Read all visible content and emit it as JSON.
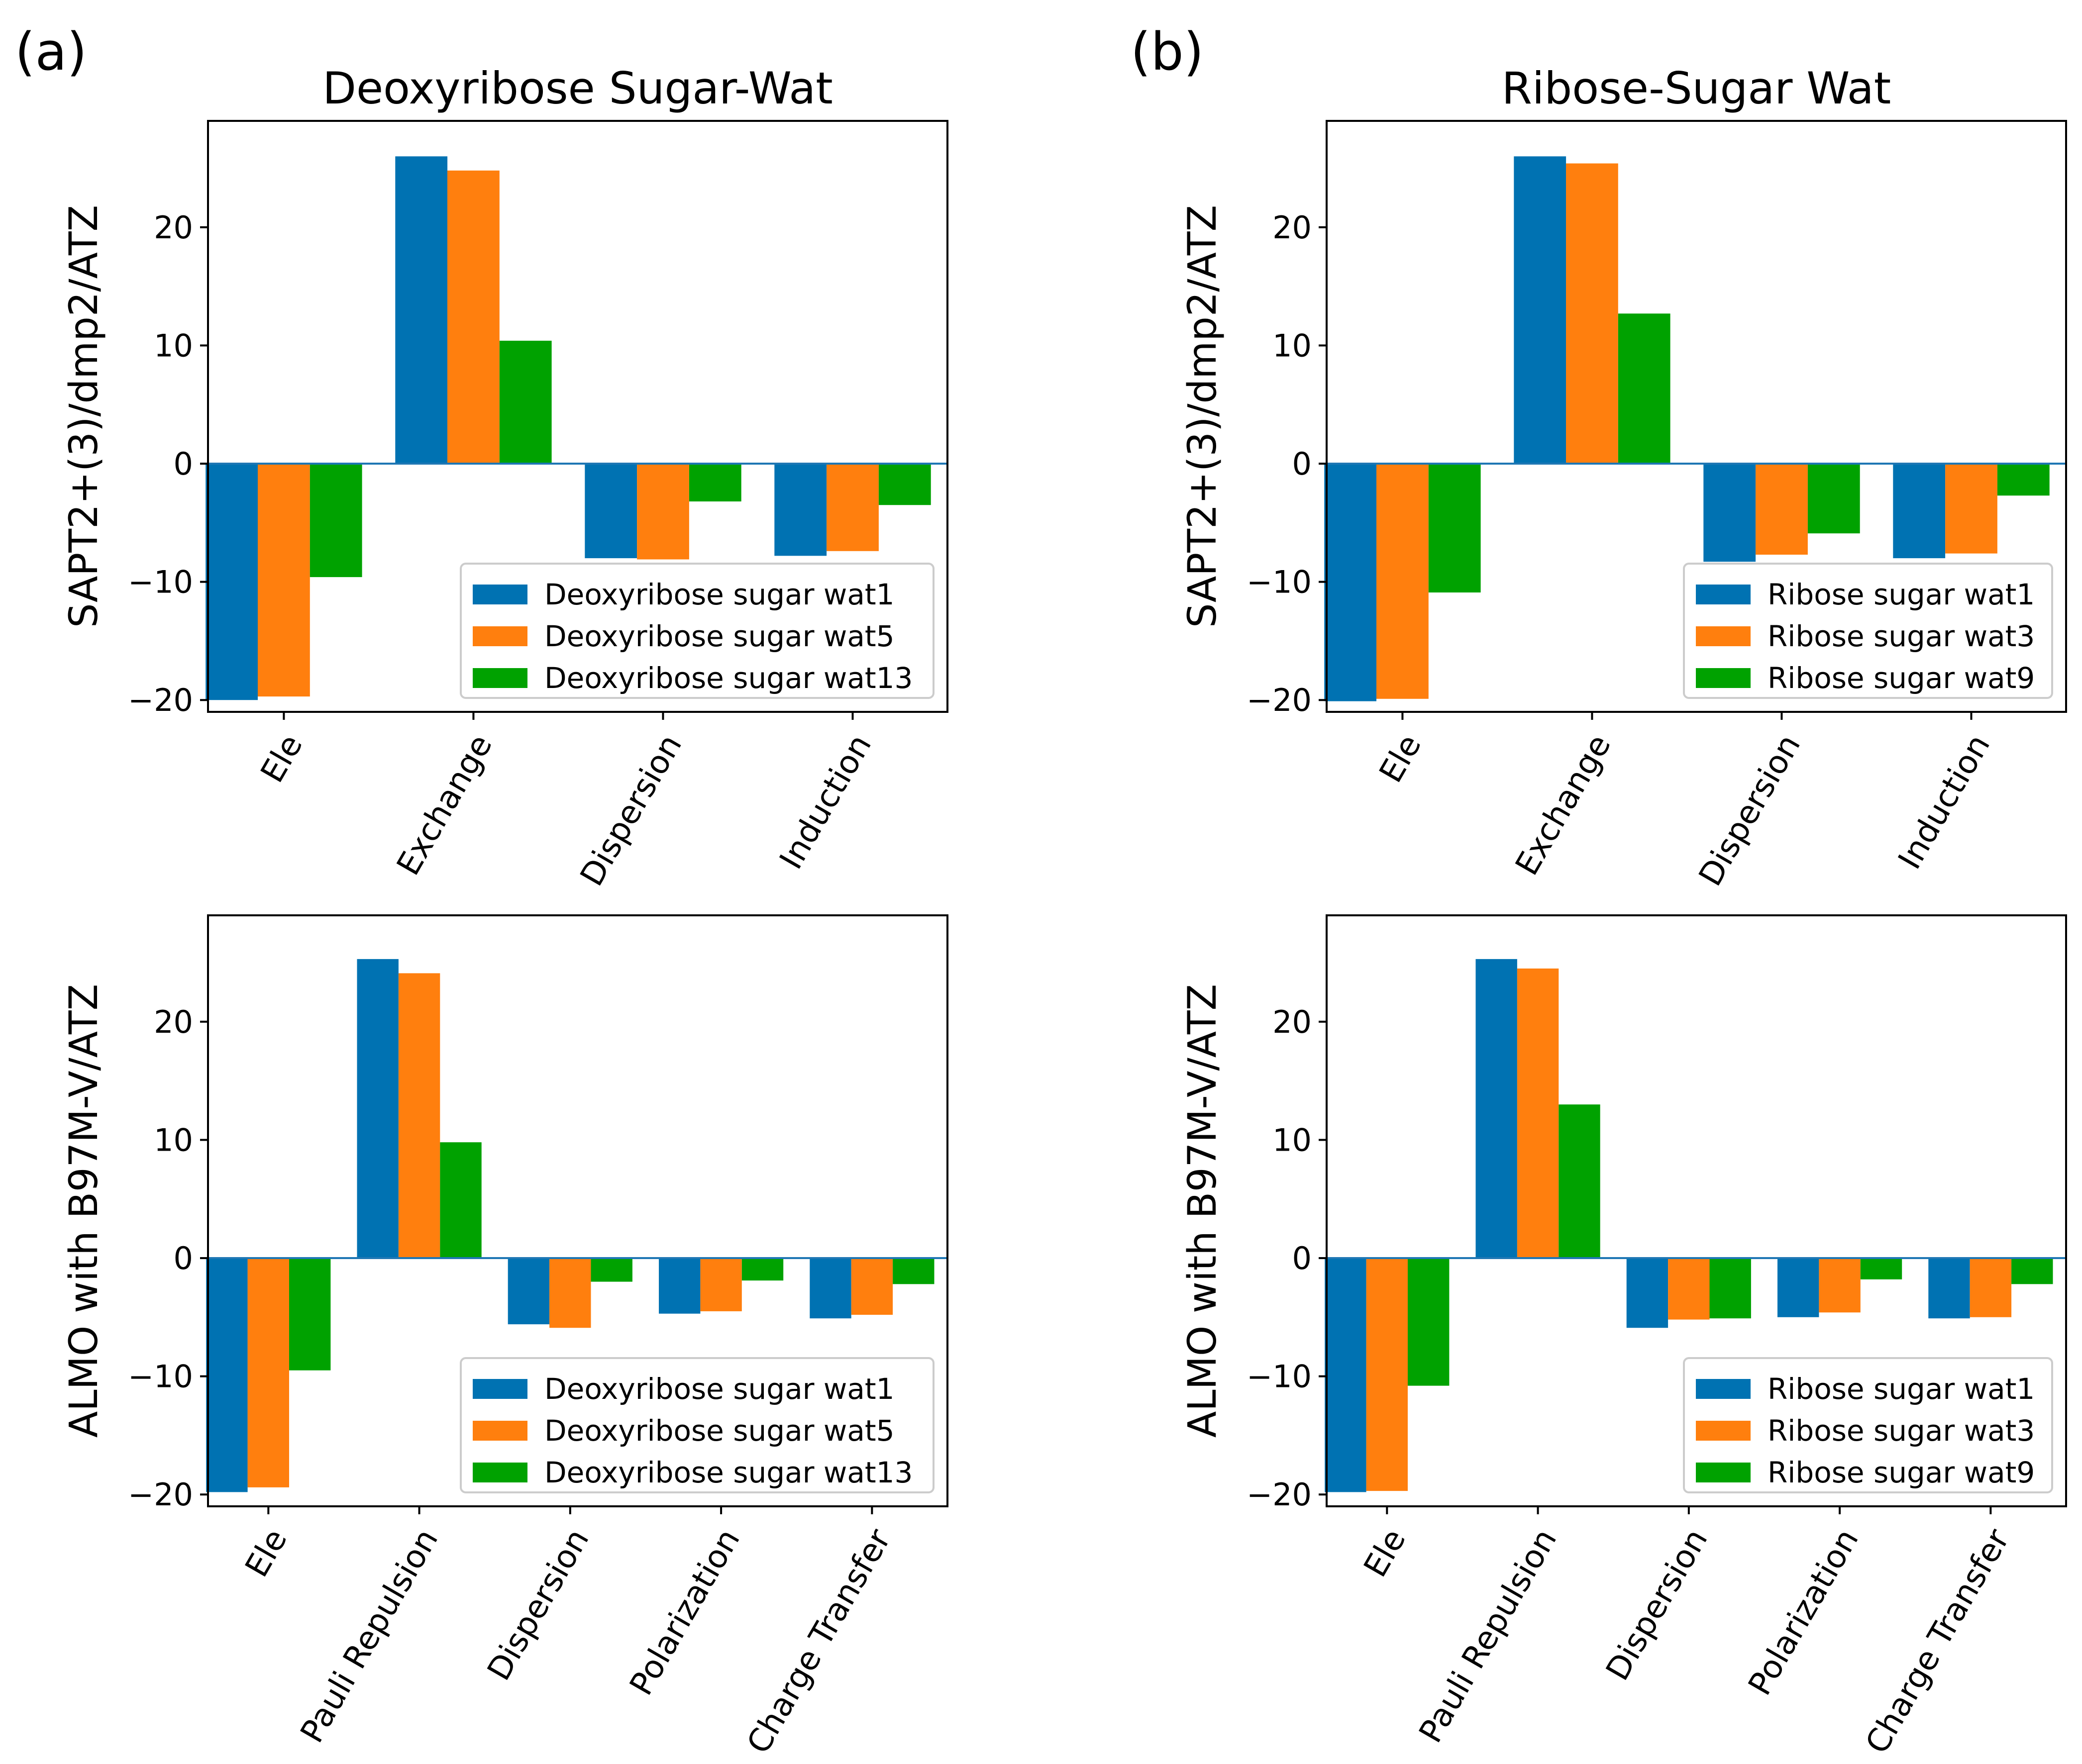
{
  "colors": {
    "s1": "#0072b2",
    "s2": "#ff7f0e",
    "s3": "#00a200",
    "zero_line": "#1f77b4"
  },
  "chart_data": [
    {
      "panel_label": "(a)",
      "title": "Deoxyribose Sugar-Wat",
      "type": "bar",
      "ylabel": "SAPT2+(3)/dmp2/ATZ",
      "ylim": [
        -21,
        29
      ],
      "yticks": [
        -20,
        -10,
        0,
        10,
        20
      ],
      "yticklabels": [
        "−20",
        "−10",
        "0",
        "10",
        "20"
      ],
      "categories": [
        "Ele",
        "Exchange",
        "Dispersion",
        "Induction"
      ],
      "legend_position": "lower-right",
      "series": [
        {
          "name": "Deoxyribose sugar wat1",
          "values": [
            -20.0,
            26.0,
            -8.0,
            -7.8
          ]
        },
        {
          "name": "Deoxyribose sugar wat5",
          "values": [
            -19.7,
            24.8,
            -8.1,
            -7.4
          ]
        },
        {
          "name": "Deoxyribose sugar wat13",
          "values": [
            -9.6,
            10.4,
            -3.2,
            -3.5
          ]
        }
      ]
    },
    {
      "panel_label": "(b)",
      "title": "Ribose-Sugar Wat",
      "type": "bar",
      "ylabel": "SAPT2+(3)/dmp2/ATZ",
      "ylim": [
        -21,
        29
      ],
      "yticks": [
        -20,
        -10,
        0,
        10,
        20
      ],
      "yticklabels": [
        "−20",
        "−10",
        "0",
        "10",
        "20"
      ],
      "categories": [
        "Ele",
        "Exchange",
        "Dispersion",
        "Induction"
      ],
      "legend_position": "lower-right",
      "series": [
        {
          "name": "Ribose sugar wat1",
          "values": [
            -20.1,
            26.0,
            -8.3,
            -8.0
          ]
        },
        {
          "name": "Ribose sugar wat3",
          "values": [
            -19.9,
            25.4,
            -7.7,
            -7.6
          ]
        },
        {
          "name": "Ribose sugar wat9",
          "values": [
            -10.9,
            12.7,
            -5.9,
            -2.7
          ]
        }
      ]
    },
    {
      "panel_label": "",
      "title": "",
      "type": "bar",
      "ylabel": "ALMO with B97M-V/ATZ",
      "ylim": [
        -21,
        29
      ],
      "yticks": [
        -20,
        -10,
        0,
        10,
        20
      ],
      "yticklabels": [
        "−20",
        "−10",
        "0",
        "10",
        "20"
      ],
      "categories": [
        "Ele",
        "Pauli Repulsion",
        "Dispersion",
        "Polarization",
        "Charge Transfer"
      ],
      "legend_position": "lower-right",
      "series": [
        {
          "name": "Deoxyribose sugar wat1",
          "values": [
            -19.8,
            25.3,
            -5.6,
            -4.7,
            -5.1
          ]
        },
        {
          "name": "Deoxyribose sugar wat5",
          "values": [
            -19.4,
            24.1,
            -5.9,
            -4.5,
            -4.8
          ]
        },
        {
          "name": "Deoxyribose sugar wat13",
          "values": [
            -9.5,
            9.8,
            -2.0,
            -1.9,
            -2.2
          ]
        }
      ]
    },
    {
      "panel_label": "",
      "title": "",
      "type": "bar",
      "ylabel": "ALMO with B97M-V/ATZ",
      "ylim": [
        -21,
        29
      ],
      "yticks": [
        -20,
        -10,
        0,
        10,
        20
      ],
      "yticklabels": [
        "−20",
        "−10",
        "0",
        "10",
        "20"
      ],
      "categories": [
        "Ele",
        "Pauli Repulsion",
        "Dispersion",
        "Polarization",
        "Charge Transfer"
      ],
      "legend_position": "lower-right",
      "series": [
        {
          "name": "Ribose sugar wat1",
          "values": [
            -19.8,
            25.3,
            -5.9,
            -5.0,
            -5.1
          ]
        },
        {
          "name": "Ribose sugar wat3",
          "values": [
            -19.7,
            24.5,
            -5.2,
            -4.6,
            -5.0
          ]
        },
        {
          "name": "Ribose sugar wat9",
          "values": [
            -10.8,
            13.0,
            -5.1,
            -1.8,
            -2.2
          ]
        }
      ]
    }
  ]
}
